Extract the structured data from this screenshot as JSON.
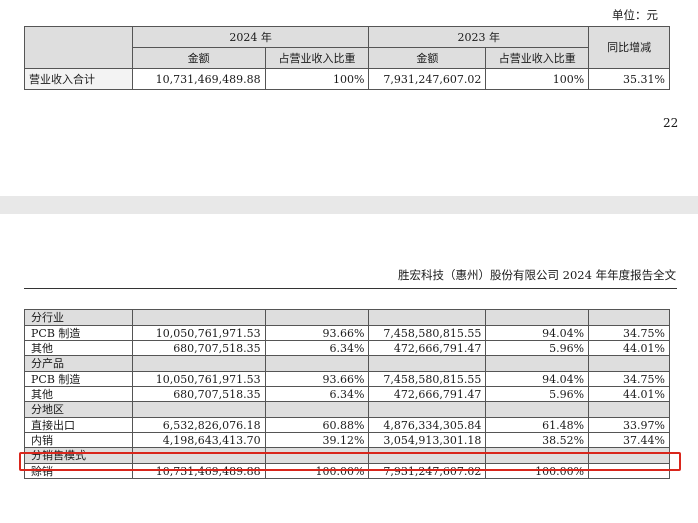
{
  "unit_label": "单位：元",
  "page_number": "22",
  "doc_title": "胜宏科技（惠州）股份有限公司 2024 年年度报告全文",
  "summary": {
    "year_a": "2024 年",
    "year_b": "2023 年",
    "amount": "金额",
    "ratio": "占营业收入比重",
    "yoy": "同比增减",
    "row_label": "营业收入合计",
    "amount_a": "10,731,469,489.88",
    "ratio_a": "100%",
    "amount_b": "7,931,247,607.02",
    "ratio_b": "100%",
    "yoy_val": "35.31%"
  },
  "detail": {
    "groups": [
      {
        "title": "分行业",
        "rows": [
          [
            "PCB 制造",
            "10,050,761,971.53",
            "93.66%",
            "7,458,580,815.55",
            "94.04%",
            "34.75%"
          ],
          [
            "其他",
            "680,707,518.35",
            "6.34%",
            "472,666,791.47",
            "5.96%",
            "44.01%"
          ]
        ]
      },
      {
        "title": "分产品",
        "rows": [
          [
            "PCB 制造",
            "10,050,761,971.53",
            "93.66%",
            "7,458,580,815.55",
            "94.04%",
            "34.75%"
          ],
          [
            "其他",
            "680,707,518.35",
            "6.34%",
            "472,666,791.47",
            "5.96%",
            "44.01%"
          ]
        ]
      },
      {
        "title": "分地区",
        "rows": [
          [
            "直接出口",
            "6,532,826,076.18",
            "60.88%",
            "4,876,334,305.84",
            "61.48%",
            "33.97%"
          ],
          [
            "内销",
            "4,198,643,413.70",
            "39.12%",
            "3,054,913,301.18",
            "38.52%",
            "37.44%"
          ]
        ]
      },
      {
        "title": "分销售模式",
        "rows": [
          [
            "赊销",
            "10,731,469,489.88",
            "100.00%",
            "7,931,247,607.02",
            "100.00%",
            ""
          ]
        ]
      }
    ]
  }
}
